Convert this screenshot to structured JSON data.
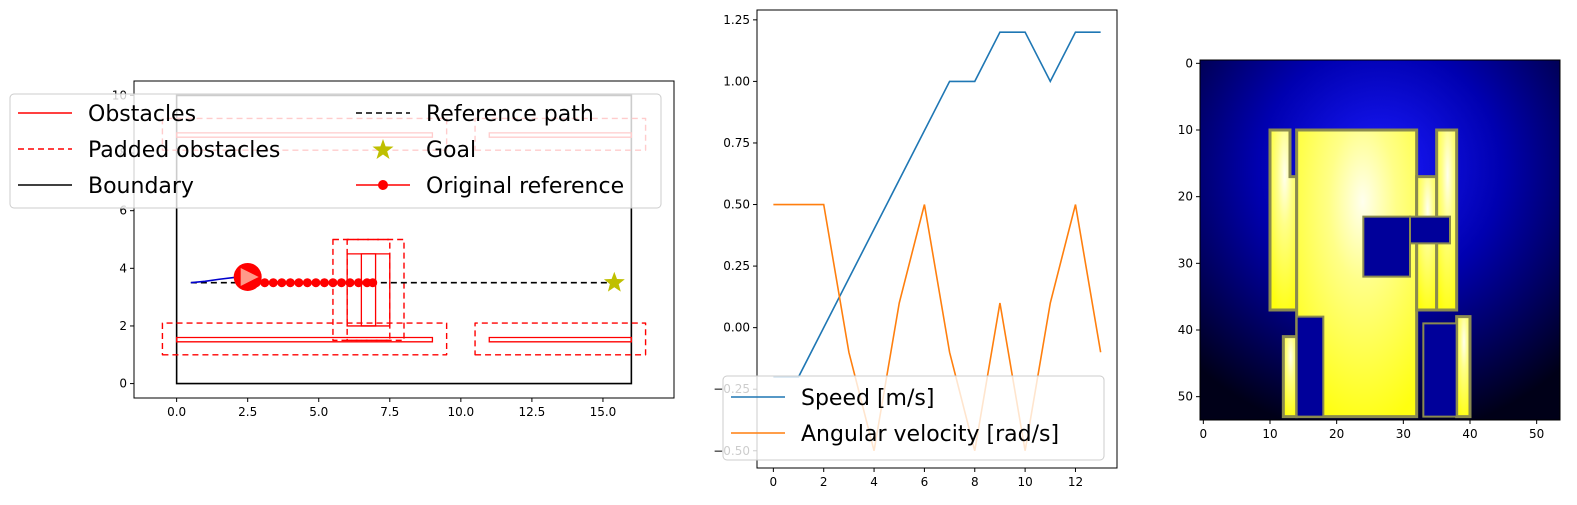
{
  "chart_data": [
    {
      "type": "line",
      "panel": "map",
      "xlim": [
        -1.5,
        17.5
      ],
      "ylim": [
        -0.5,
        10.5
      ],
      "xticks": [
        0.0,
        2.5,
        5.0,
        7.5,
        10.0,
        12.5,
        15.0
      ],
      "xtick_labels": [
        "0.0",
        "2.5",
        "5.0",
        "7.5",
        "10.0",
        "12.5",
        "15.0"
      ],
      "yticks": [
        0,
        2,
        4,
        6,
        8,
        10
      ],
      "ytick_labels": [
        "0",
        "2",
        "4",
        "6",
        "8",
        "10"
      ],
      "legend": {
        "placement": "upper center",
        "entries": [
          {
            "label": "Obstacles",
            "style": "solid",
            "color": "#ff0000",
            "marker": "none"
          },
          {
            "label": "Padded obstacles",
            "style": "dashed",
            "color": "#ff0000",
            "marker": "none"
          },
          {
            "label": "Boundary",
            "style": "solid",
            "color": "#000000",
            "marker": "none"
          },
          {
            "label": "Reference path",
            "style": "dashed",
            "color": "#000000",
            "marker": "none"
          },
          {
            "label": "Goal",
            "style": "none",
            "color": "#bfbf00",
            "marker": "star"
          },
          {
            "label": "Original reference",
            "style": "solid",
            "color": "#ff0000",
            "marker": "circle"
          }
        ]
      },
      "boundary": [
        [
          0,
          0
        ],
        [
          16,
          0
        ],
        [
          16,
          10
        ],
        [
          0,
          10
        ]
      ],
      "obstacles": [
        [
          [
            0,
            1.45
          ],
          [
            9,
            1.45
          ],
          [
            9,
            1.6
          ],
          [
            0,
            1.6
          ]
        ],
        [
          [
            11,
            1.45
          ],
          [
            16,
            1.45
          ],
          [
            16,
            1.6
          ],
          [
            11,
            1.6
          ]
        ],
        [
          [
            0,
            8.55
          ],
          [
            9,
            8.55
          ],
          [
            9,
            8.7
          ],
          [
            0,
            8.7
          ]
        ],
        [
          [
            11,
            8.55
          ],
          [
            16,
            8.55
          ],
          [
            16,
            8.7
          ],
          [
            11,
            8.7
          ]
        ],
        [
          [
            6,
            4.5
          ],
          [
            7,
            4.5
          ],
          [
            7,
            2.0
          ],
          [
            6,
            2.0
          ]
        ],
        [
          [
            6.5,
            4.5
          ],
          [
            7.5,
            4.5
          ],
          [
            7.5,
            2.0
          ],
          [
            6.5,
            2.0
          ]
        ]
      ],
      "padded_obstacles": [
        [
          [
            -0.5,
            1.0
          ],
          [
            9.5,
            1.0
          ],
          [
            9.5,
            2.1
          ],
          [
            -0.5,
            2.1
          ]
        ],
        [
          [
            10.5,
            1.0
          ],
          [
            16.5,
            1.0
          ],
          [
            16.5,
            2.1
          ],
          [
            10.5,
            2.1
          ]
        ],
        [
          [
            -0.5,
            8.1
          ],
          [
            9.5,
            8.1
          ],
          [
            9.5,
            9.2
          ],
          [
            -0.5,
            9.2
          ]
        ],
        [
          [
            10.5,
            8.1
          ],
          [
            16.5,
            8.1
          ],
          [
            16.5,
            9.2
          ],
          [
            10.5,
            9.2
          ]
        ],
        [
          [
            5.5,
            5.0
          ],
          [
            7.5,
            5.0
          ],
          [
            7.5,
            1.5
          ],
          [
            5.5,
            1.5
          ]
        ],
        [
          [
            6.0,
            5.0
          ],
          [
            8.0,
            5.0
          ],
          [
            8.0,
            1.5
          ],
          [
            6.0,
            1.5
          ]
        ]
      ],
      "reference_path": {
        "x": [
          0.5,
          15.5
        ],
        "y": [
          3.5,
          3.5
        ]
      },
      "original_reference": {
        "x": [
          2.5,
          2.8,
          3.1,
          3.4,
          3.7,
          4.0,
          4.3,
          4.6,
          4.9,
          5.2,
          5.5,
          5.8,
          6.1,
          6.4,
          6.7,
          6.9
        ],
        "y": [
          3.5,
          3.5,
          3.5,
          3.5,
          3.5,
          3.5,
          3.5,
          3.5,
          3.5,
          3.5,
          3.5,
          3.5,
          3.5,
          3.5,
          3.5,
          3.5
        ]
      },
      "trajectory": {
        "x": [
          0.5,
          1.0,
          1.5,
          2.0,
          2.5
        ],
        "y": [
          3.5,
          3.55,
          3.62,
          3.68,
          3.7
        ]
      },
      "robot": {
        "x": 2.5,
        "y": 3.7
      },
      "goal": {
        "x": 15.4,
        "y": 3.5
      }
    },
    {
      "type": "line",
      "panel": "controls",
      "x": [
        0,
        1,
        2,
        3,
        4,
        5,
        6,
        7,
        8,
        9,
        10,
        11,
        12,
        13
      ],
      "xlim": [
        -0.65,
        13.65
      ],
      "ylim": [
        -0.57,
        1.29
      ],
      "xticks": [
        0,
        2,
        4,
        6,
        8,
        10,
        12
      ],
      "xtick_labels": [
        "0",
        "2",
        "4",
        "6",
        "8",
        "10",
        "12"
      ],
      "yticks": [
        -0.5,
        -0.25,
        0.0,
        0.25,
        0.5,
        0.75,
        1.0,
        1.25
      ],
      "ytick_labels": [
        "−0.50",
        "−0.25",
        "0.00",
        "0.25",
        "0.50",
        "0.75",
        "1.00",
        "1.25"
      ],
      "series": [
        {
          "name": "Speed [m/s]",
          "color": "#1f77b4",
          "values": [
            -0.2,
            -0.2,
            0.0,
            0.2,
            0.4,
            0.6,
            0.8,
            1.0,
            1.0,
            1.2,
            1.2,
            1.0,
            1.2,
            1.2
          ]
        },
        {
          "name": "Angular velocity [rad/s]",
          "color": "#ff7f0e",
          "values": [
            0.5,
            0.5,
            0.5,
            -0.1,
            -0.5,
            0.1,
            0.5,
            -0.1,
            -0.5,
            0.1,
            -0.5,
            0.1,
            0.5,
            -0.1
          ]
        }
      ],
      "legend": {
        "placement": "lower left"
      }
    },
    {
      "type": "heatmap",
      "panel": "image",
      "xlim": [
        -0.5,
        53.5
      ],
      "ylim": [
        53.5,
        -0.5
      ],
      "xticks": [
        0,
        10,
        20,
        30,
        40,
        50
      ],
      "xtick_labels": [
        "0",
        "10",
        "20",
        "30",
        "40",
        "50"
      ],
      "yticks": [
        0,
        10,
        20,
        30,
        40,
        50
      ],
      "ytick_labels": [
        "0",
        "10",
        "20",
        "30",
        "40",
        "50"
      ],
      "colors": {
        "background": "#000010",
        "glow": "#0000d8",
        "free_space": "#ffff22",
        "bright": "#ffffcc",
        "edge": "#8a8a50"
      },
      "free_regions": [
        [
          [
            10,
            10
          ],
          [
            13,
            10
          ],
          [
            13,
            17
          ],
          [
            14,
            17
          ],
          [
            14,
            37
          ],
          [
            10,
            37
          ]
        ],
        [
          [
            14,
            10
          ],
          [
            32,
            10
          ],
          [
            32,
            53
          ],
          [
            14,
            53
          ]
        ],
        [
          [
            32,
            17
          ],
          [
            35,
            17
          ],
          [
            35,
            37
          ],
          [
            32,
            37
          ]
        ],
        [
          [
            35,
            10
          ],
          [
            38,
            10
          ],
          [
            38,
            37
          ],
          [
            35,
            37
          ]
        ],
        [
          [
            38,
            38
          ],
          [
            40,
            38
          ],
          [
            40,
            53
          ],
          [
            38,
            53
          ]
        ],
        [
          [
            12,
            41
          ],
          [
            14,
            41
          ],
          [
            14,
            53
          ],
          [
            12,
            53
          ]
        ]
      ],
      "blocked_regions": [
        [
          [
            24,
            23
          ],
          [
            31,
            23
          ],
          [
            31,
            32
          ],
          [
            24,
            32
          ]
        ],
        [
          [
            31,
            23
          ],
          [
            37,
            23
          ],
          [
            37,
            27
          ],
          [
            31,
            27
          ]
        ],
        [
          [
            14,
            38
          ],
          [
            18,
            38
          ],
          [
            18,
            53
          ],
          [
            14,
            53
          ]
        ],
        [
          [
            33,
            39
          ],
          [
            38,
            39
          ],
          [
            38,
            53
          ],
          [
            33,
            53
          ]
        ]
      ]
    }
  ]
}
